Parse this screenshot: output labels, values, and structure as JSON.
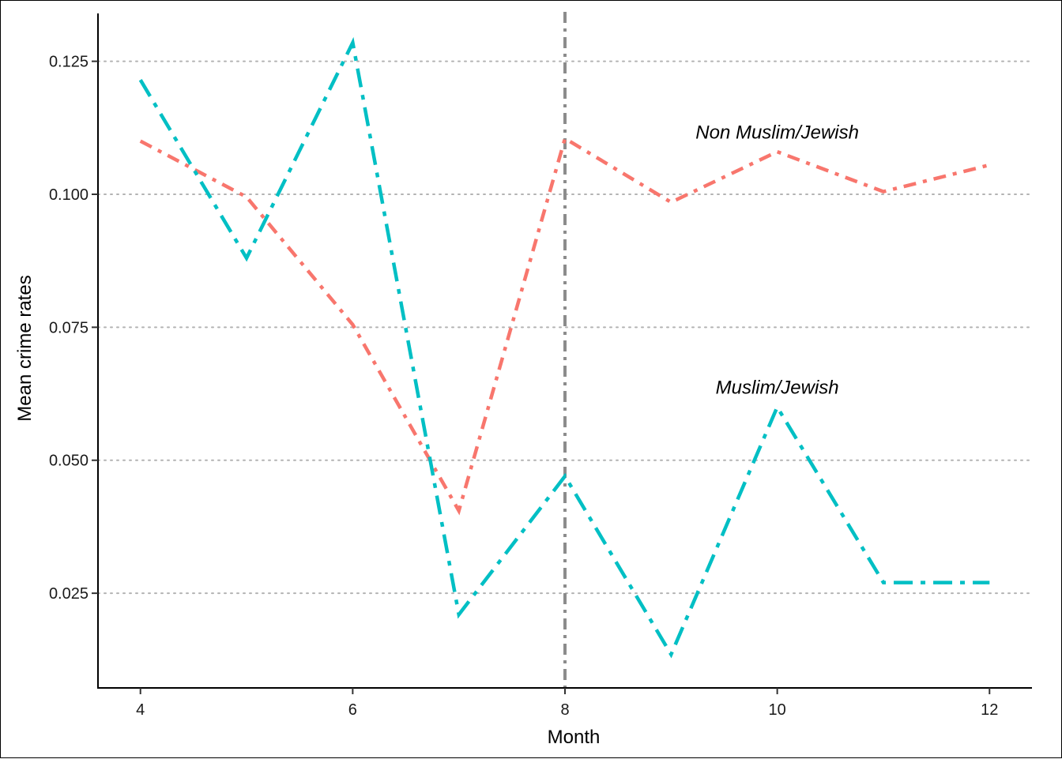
{
  "chart_data": {
    "type": "line",
    "xlabel": "Month",
    "ylabel": "Mean crime rates",
    "xlim": [
      3.6,
      12.4
    ],
    "ylim": [
      0.0072,
      0.134
    ],
    "x_ticks": [
      4,
      6,
      8,
      10,
      12
    ],
    "y_ticks": [
      0.025,
      0.05,
      0.075,
      0.1,
      0.125
    ],
    "x_tick_labels": [
      "4",
      "6",
      "8",
      "10",
      "12"
    ],
    "y_tick_labels": [
      "0.025",
      "0.050",
      "0.075",
      "0.100",
      "0.125"
    ],
    "grid": "horizontal dotted",
    "legend": "none",
    "vline": {
      "x": 8,
      "color": "#8c8c8c",
      "style": "dashdot"
    },
    "series": [
      {
        "name": "Non Muslim/Jewish",
        "color": "#F8766D",
        "x": [
          4,
          5,
          6,
          7,
          8,
          9,
          10,
          11,
          12
        ],
        "values": [
          0.11,
          0.0995,
          0.0755,
          0.0405,
          0.1105,
          0.0985,
          0.108,
          0.1005,
          0.1055
        ]
      },
      {
        "name": "Muslim/Jewish",
        "color": "#00BFC4",
        "x": [
          4,
          5,
          6,
          7,
          8,
          9,
          10,
          11,
          12
        ],
        "values": [
          0.1215,
          0.088,
          0.1285,
          0.021,
          0.047,
          0.0135,
          0.06,
          0.027,
          0.027
        ]
      }
    ],
    "annotations": [
      {
        "text": "Non Muslim/Jewish",
        "x": 10,
        "y": 0.1105
      },
      {
        "text": "Muslim/Jewish",
        "x": 10,
        "y": 0.0625
      }
    ]
  }
}
